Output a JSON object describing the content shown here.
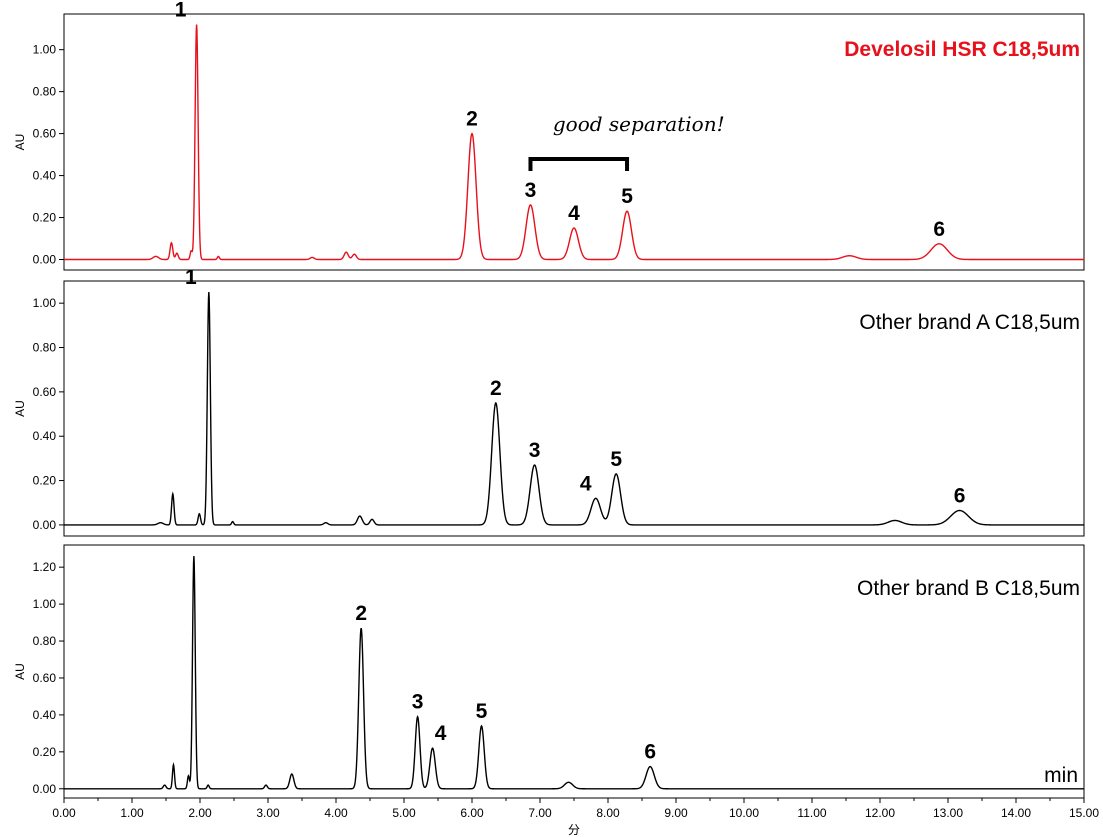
{
  "chart_data": {
    "type": "line",
    "x_axis": {
      "range": [
        0,
        15
      ],
      "ticks": [
        "0.00",
        "1.00",
        "2.00",
        "3.00",
        "4.00",
        "5.00",
        "6.00",
        "7.00",
        "8.00",
        "9.00",
        "10.00",
        "11.00",
        "12.00",
        "13.00",
        "14.00",
        "15.00"
      ],
      "label": "分",
      "unit": "min"
    },
    "annotation": "good separation!",
    "panels": [
      {
        "name": "Develosil HSR C18,5um",
        "color": "#e8101a",
        "label_color": "#e8101a",
        "label_bold": true,
        "ylabel": "AU",
        "ylim": [
          -0.05,
          1.17
        ],
        "yticks": [
          "0.00",
          "0.20",
          "0.40",
          "0.60",
          "0.80",
          "1.00"
        ],
        "peaks": [
          {
            "label": "1",
            "rt": 1.95,
            "height": 1.12,
            "width": 0.022
          },
          {
            "label": "2",
            "rt": 6.0,
            "height": 0.6,
            "width": 0.06
          },
          {
            "label": "3",
            "rt": 6.86,
            "height": 0.26,
            "width": 0.065
          },
          {
            "label": "4",
            "rt": 7.5,
            "height": 0.15,
            "width": 0.065
          },
          {
            "label": "5",
            "rt": 8.28,
            "height": 0.23,
            "width": 0.065
          },
          {
            "label": "6",
            "rt": 12.87,
            "height": 0.075,
            "width": 0.12
          }
        ],
        "minor_peaks": [
          {
            "rt": 1.35,
            "height": 0.015,
            "width": 0.04
          },
          {
            "rt": 1.58,
            "height": 0.08,
            "width": 0.02
          },
          {
            "rt": 1.66,
            "height": 0.03,
            "width": 0.02
          },
          {
            "rt": 1.87,
            "height": 0.04,
            "width": 0.015
          },
          {
            "rt": 2.27,
            "height": 0.015,
            "width": 0.015
          },
          {
            "rt": 3.65,
            "height": 0.01,
            "width": 0.03
          },
          {
            "rt": 4.15,
            "height": 0.035,
            "width": 0.03
          },
          {
            "rt": 4.27,
            "height": 0.025,
            "width": 0.03
          },
          {
            "rt": 11.55,
            "height": 0.018,
            "width": 0.1
          }
        ]
      },
      {
        "name": "Other brand A C18,5um",
        "color": "#000000",
        "label_color": "#000000",
        "label_bold": false,
        "ylabel": "AU",
        "ylim": [
          -0.05,
          1.1
        ],
        "yticks": [
          "0.00",
          "0.20",
          "0.40",
          "0.60",
          "0.80",
          "1.00"
        ],
        "peaks": [
          {
            "label": "1",
            "rt": 2.13,
            "height": 1.05,
            "width": 0.022
          },
          {
            "label": "2",
            "rt": 6.35,
            "height": 0.55,
            "width": 0.06
          },
          {
            "label": "3",
            "rt": 6.92,
            "height": 0.27,
            "width": 0.065
          },
          {
            "label": "4",
            "rt": 7.82,
            "height": 0.12,
            "width": 0.07
          },
          {
            "label": "5",
            "rt": 8.12,
            "height": 0.23,
            "width": 0.065
          },
          {
            "label": "6",
            "rt": 13.17,
            "height": 0.065,
            "width": 0.13
          }
        ],
        "minor_peaks": [
          {
            "rt": 1.42,
            "height": 0.01,
            "width": 0.04
          },
          {
            "rt": 1.6,
            "height": 0.14,
            "width": 0.018
          },
          {
            "rt": 1.99,
            "height": 0.05,
            "width": 0.018
          },
          {
            "rt": 2.48,
            "height": 0.015,
            "width": 0.015
          },
          {
            "rt": 3.85,
            "height": 0.01,
            "width": 0.03
          },
          {
            "rt": 4.35,
            "height": 0.04,
            "width": 0.035
          },
          {
            "rt": 4.53,
            "height": 0.025,
            "width": 0.03
          },
          {
            "rt": 12.22,
            "height": 0.02,
            "width": 0.1
          }
        ]
      },
      {
        "name": "Other brand B C18,5um",
        "color": "#000000",
        "label_color": "#000000",
        "label_bold": false,
        "ylabel": "AU",
        "ylim": [
          -0.05,
          1.32
        ],
        "yticks": [
          "0.00",
          "0.20",
          "0.40",
          "0.60",
          "0.80",
          "1.00",
          "1.20"
        ],
        "peaks": [
          {
            "label": "",
            "rt": 1.91,
            "height": 1.26,
            "width": 0.02
          },
          {
            "label": "2",
            "rt": 4.37,
            "height": 0.87,
            "width": 0.035
          },
          {
            "label": "3",
            "rt": 5.2,
            "height": 0.39,
            "width": 0.035
          },
          {
            "label": "4",
            "rt": 5.42,
            "height": 0.22,
            "width": 0.04
          },
          {
            "label": "5",
            "rt": 6.14,
            "height": 0.34,
            "width": 0.04
          },
          {
            "label": "6",
            "rt": 8.62,
            "height": 0.12,
            "width": 0.06
          }
        ],
        "minor_peaks": [
          {
            "rt": 1.48,
            "height": 0.02,
            "width": 0.02
          },
          {
            "rt": 1.61,
            "height": 0.13,
            "width": 0.015
          },
          {
            "rt": 1.83,
            "height": 0.07,
            "width": 0.015
          },
          {
            "rt": 2.12,
            "height": 0.02,
            "width": 0.015
          },
          {
            "rt": 2.97,
            "height": 0.02,
            "width": 0.02
          },
          {
            "rt": 3.35,
            "height": 0.08,
            "width": 0.03
          },
          {
            "rt": 7.42,
            "height": 0.035,
            "width": 0.06
          }
        ]
      }
    ]
  }
}
